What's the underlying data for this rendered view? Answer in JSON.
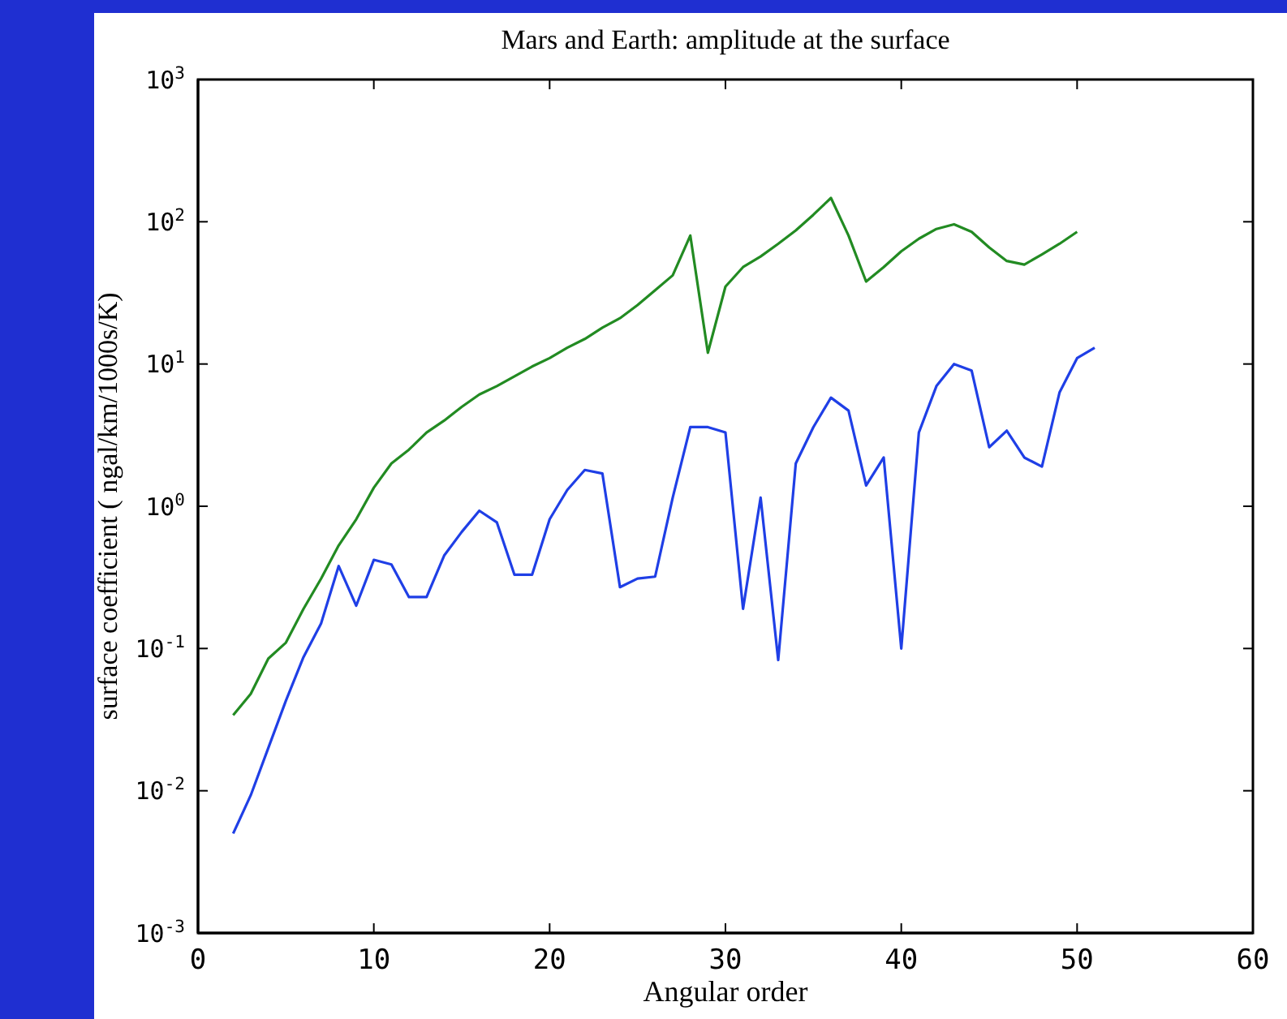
{
  "chart_data": {
    "type": "line",
    "title": "Mars and Earth: amplitude at the surface",
    "xlabel": "Angular order",
    "ylabel": "surface coefficient ( ngal/km/1000s/K)",
    "log": "y",
    "grid": false,
    "marker": "none",
    "line_style": "solid",
    "xlim": [
      0,
      60
    ],
    "xticks": [
      0,
      10,
      20,
      30,
      40,
      50,
      60
    ],
    "ylim": [
      0.001,
      1000
    ],
    "yticks": [
      {
        "value": 0.001,
        "label": "10$^{-3}$"
      },
      {
        "value": 0.01,
        "label": "10$^{-2}$"
      },
      {
        "value": 0.1,
        "label": "10$^{-1}$"
      },
      {
        "value": 1,
        "label": "10$^{0}$"
      },
      {
        "value": 10,
        "label": "10$^{1}$"
      },
      {
        "value": 100,
        "label": "10$^{2}$"
      },
      {
        "value": 1000,
        "label": "10$^{3}$"
      }
    ],
    "series": [
      {
        "color": "#228b22",
        "x": [
          2,
          3,
          4,
          5,
          6,
          7,
          8,
          9,
          10,
          11,
          12,
          13,
          14,
          15,
          16,
          17,
          18,
          19,
          20,
          21,
          22,
          23,
          24,
          25,
          26,
          27,
          28,
          29,
          30,
          31,
          32,
          33,
          34,
          35,
          36,
          37,
          38,
          39,
          40,
          41,
          42,
          43,
          44,
          45,
          46,
          47,
          48,
          49,
          50
        ],
        "values": [
          0.034,
          0.048,
          0.085,
          0.11,
          0.19,
          0.31,
          0.53,
          0.81,
          1.35,
          2.0,
          2.5,
          3.3,
          4.0,
          5.0,
          6.1,
          7,
          8.2,
          9.6,
          11,
          13,
          15,
          18,
          21,
          26,
          33,
          42,
          80,
          12,
          35,
          48,
          57,
          70,
          87,
          112,
          147,
          80,
          38,
          48,
          62,
          76,
          89,
          96,
          85,
          66,
          53,
          50,
          59,
          70,
          85
        ]
      },
      {
        "color": "#1f3fe6",
        "x": [
          2,
          3,
          4,
          5,
          6,
          7,
          8,
          9,
          10,
          11,
          12,
          13,
          14,
          15,
          16,
          17,
          18,
          19,
          20,
          21,
          22,
          23,
          24,
          25,
          26,
          27,
          28,
          29,
          30,
          31,
          32,
          33,
          34,
          35,
          36,
          37,
          38,
          39,
          40,
          41,
          42,
          43,
          44,
          45,
          46,
          47,
          48,
          49,
          50,
          51
        ],
        "values": [
          0.005,
          0.0093,
          0.02,
          0.043,
          0.087,
          0.15,
          0.38,
          0.2,
          0.42,
          0.39,
          0.23,
          0.23,
          0.45,
          0.66,
          0.93,
          0.77,
          0.33,
          0.33,
          0.81,
          1.3,
          1.8,
          1.7,
          0.27,
          0.31,
          0.32,
          1.15,
          3.6,
          3.6,
          3.3,
          0.19,
          1.15,
          0.083,
          2.0,
          3.6,
          5.8,
          4.7,
          1.4,
          2.2,
          0.1,
          3.3,
          7,
          10,
          9,
          2.6,
          3.4,
          2.2,
          1.9,
          6.3,
          11,
          13
        ]
      }
    ]
  }
}
